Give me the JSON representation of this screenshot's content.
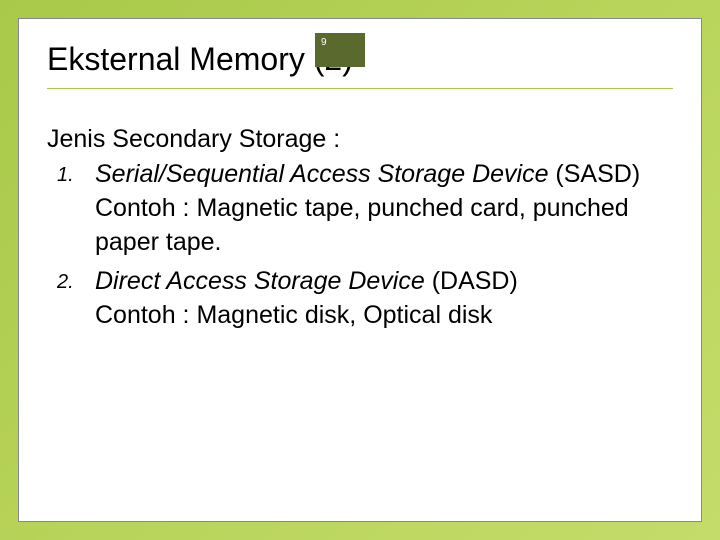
{
  "page_number": "9",
  "title": "Eksternal Memory (2)",
  "intro": "Jenis Secondary Storage :",
  "items": [
    {
      "num": "1.",
      "title_italic": "Serial/Sequential Access Storage Device",
      "title_rest": " (SASD)",
      "example": "Contoh : Magnetic tape, punched card, punched paper tape."
    },
    {
      "num": "2.",
      "title_italic": "Direct Access Storage Device",
      "title_rest": " (DASD)",
      "example": "Contoh : Magnetic disk, Optical disk"
    }
  ],
  "colors": {
    "badge_bg": "#5a6a2f",
    "accent": "#a8c94a"
  }
}
